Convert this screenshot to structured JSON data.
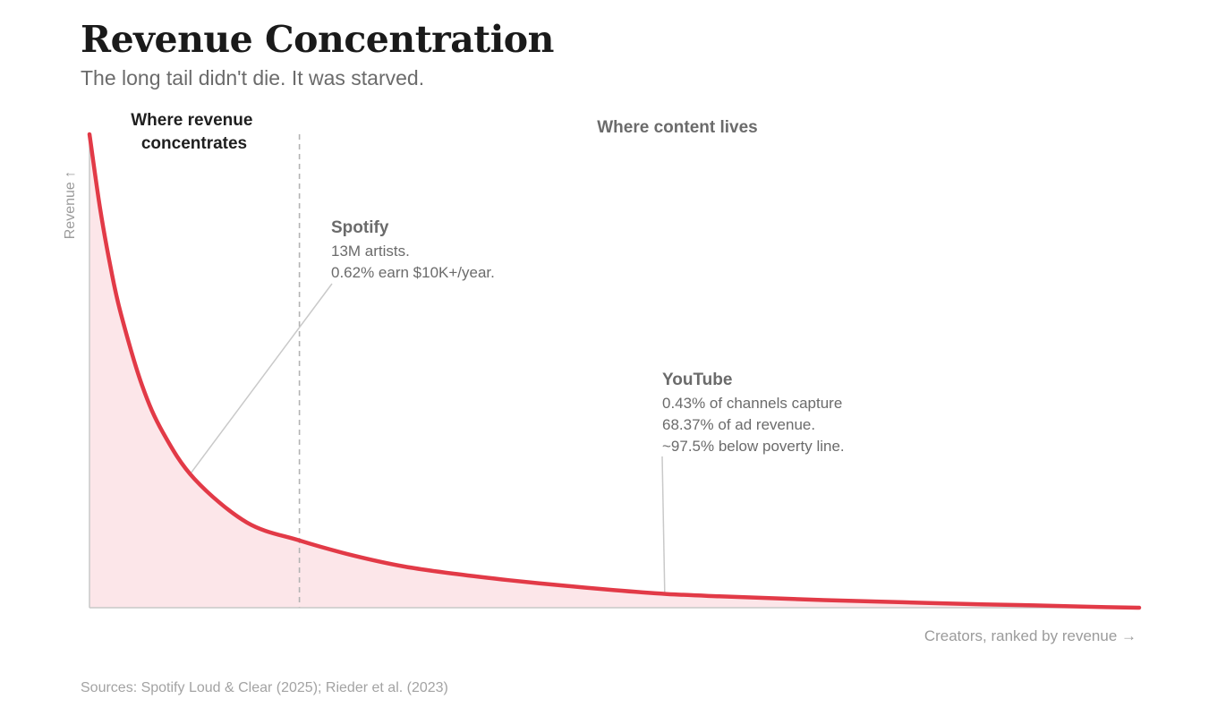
{
  "title": "Revenue Concentration",
  "subtitle": "The long tail didn't die. It was starved.",
  "sources": "Sources: Spotify Loud & Clear (2025); Rieder et al. (2023)",
  "colors": {
    "curve": "#e23a47",
    "fill": "#fce6e9",
    "divider": "#b3b3b3",
    "axis": "#c8c8c8",
    "annotation": "#6b6b6b",
    "leader": "#c9c9c9"
  },
  "chart_data": {
    "type": "area",
    "xlabel": "Creators, ranked by revenue →",
    "ylabel": "Revenue ↑",
    "x_ticks": false,
    "y_ticks": false,
    "grid": false,
    "curve": {
      "x": [
        0,
        0.01,
        0.02,
        0.03,
        0.05,
        0.07,
        0.1,
        0.15,
        0.2,
        0.25,
        0.3,
        0.35,
        0.4,
        0.45,
        0.5,
        0.55,
        0.6,
        0.65,
        0.7,
        0.75,
        0.8,
        0.85,
        0.9,
        0.95,
        1.0
      ],
      "y": [
        1.0,
        0.845,
        0.72,
        0.62,
        0.47,
        0.37,
        0.272,
        0.18,
        0.142,
        0.111,
        0.087,
        0.071,
        0.058,
        0.047,
        0.037,
        0.029,
        0.024,
        0.02,
        0.016,
        0.013,
        0.01,
        0.007,
        0.005,
        0.002,
        0.0
      ],
      "ylim": [
        0,
        1
      ],
      "xlim": [
        0,
        1
      ]
    },
    "divider_x": 0.2,
    "regions": [
      {
        "label": "Where revenue concentrates",
        "lines": [
          "Where revenue",
          "concentrates"
        ],
        "side": "head"
      },
      {
        "label": "Where content lives",
        "lines": [
          "Where content lives"
        ],
        "side": "tail"
      }
    ],
    "annotations": [
      {
        "title": "Spotify",
        "lines": [
          "13M artists.",
          "0.62% earn $10K+/year."
        ],
        "point_x": 0.097
      },
      {
        "title": "YouTube",
        "lines": [
          "0.43% of channels capture",
          "68.37% of ad revenue.",
          "~97.5% below poverty line."
        ],
        "point_x": 0.548
      }
    ]
  }
}
